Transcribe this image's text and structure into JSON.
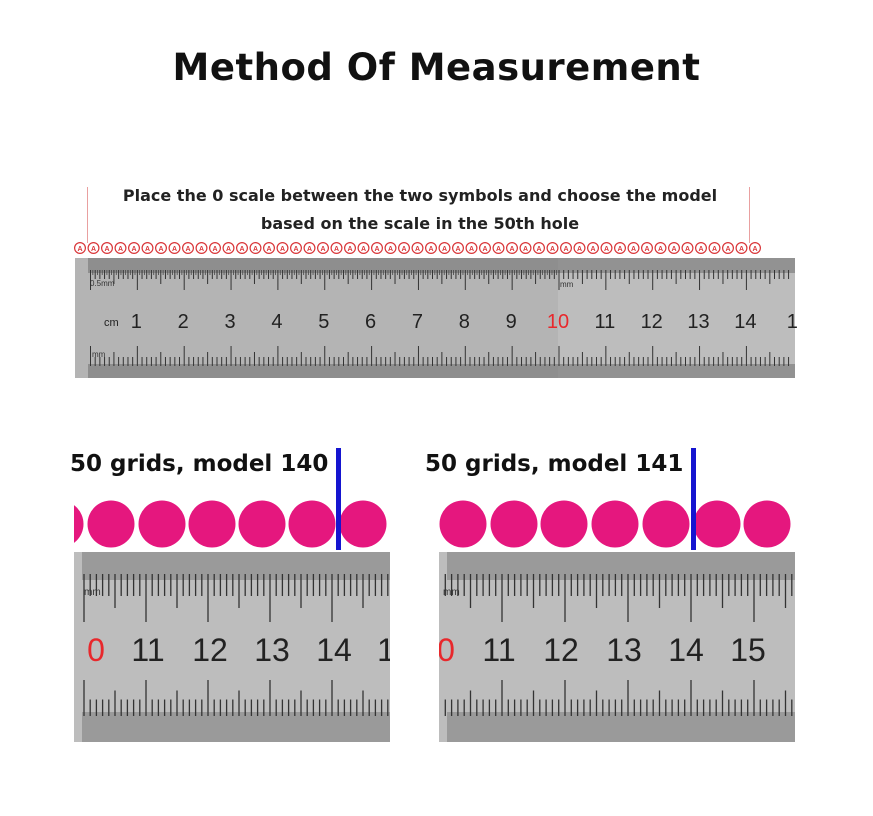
{
  "title": "Method Of Measurement",
  "instruction": {
    "line1": "Place the 0 scale between the two symbols and choose the model",
    "line2": "based on the scale in the 50th hole"
  },
  "top_ruler": {
    "small_label": "0.5mm",
    "mm_label_right": "mm",
    "mm_label_left": "mm",
    "cm_label": "cm",
    "numbers": [
      "1",
      "2",
      "3",
      "4",
      "5",
      "6",
      "7",
      "8",
      "9",
      "10",
      "11",
      "12",
      "13",
      "14",
      "1"
    ],
    "highlight_number": "10",
    "highlight_color": "#e8282c",
    "symbol_letter": "A"
  },
  "panels": [
    {
      "label": "50 grids, model 140",
      "mm_label": "mm",
      "numbers": [
        "0",
        "11",
        "12",
        "13",
        "14",
        "1"
      ],
      "bead_color": "#e5177e",
      "marker_color": "#1515d0"
    },
    {
      "label": "50 grids, model 141",
      "mm_label": "mm",
      "numbers": [
        "0",
        "11",
        "12",
        "13",
        "14",
        "15"
      ],
      "bead_color": "#e5177e",
      "marker_color": "#1515d0"
    }
  ]
}
